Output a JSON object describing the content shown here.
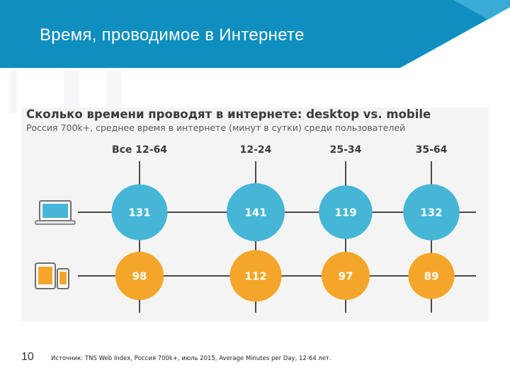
{
  "slide": {
    "title": "Время, проводимое в Интернете",
    "page_number": "10",
    "source": "Источник: TNS Web Index, Россия 700k+, июль 2015, Average Minutes per Day, 12-64 лет."
  },
  "colors": {
    "header": "#0e8fc0",
    "header_accent": "#5fc3e4",
    "desktop": "#45b6d6",
    "mobile": "#f4a62a",
    "line": "#4a4a4a",
    "label": "#3b3b3b"
  },
  "icons": {
    "desktop": "laptop-icon",
    "mobile": "tablet-phone-icon"
  },
  "chart_data": {
    "type": "bubble",
    "title": "Сколько времени проводят в интернете: desktop vs. mobile",
    "subtitle": "Россия 700k+, среднее время в интернете (минут в сутки) среди пользователей",
    "categories": [
      "Все 12-64",
      "12-24",
      "25-34",
      "35-64"
    ],
    "series": [
      {
        "name": "desktop",
        "values": [
          131,
          141,
          119,
          132
        ]
      },
      {
        "name": "mobile",
        "values": [
          98,
          112,
          97,
          89
        ]
      }
    ]
  }
}
